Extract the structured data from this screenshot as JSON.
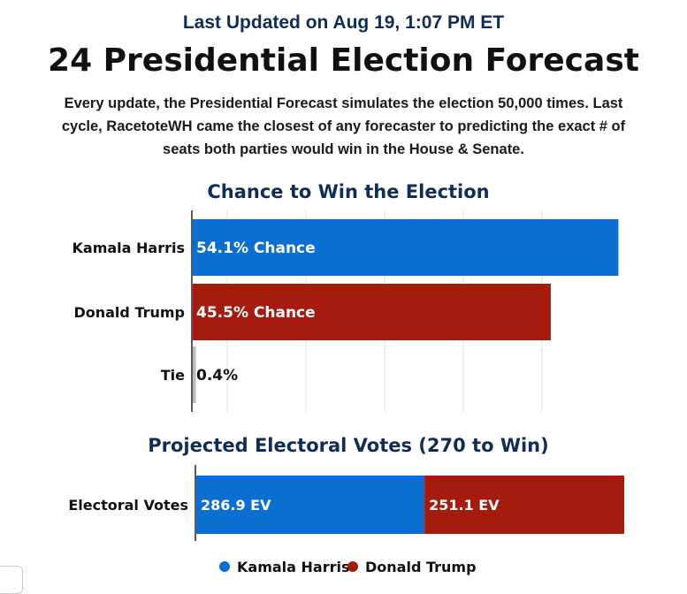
{
  "header": {
    "updated": "Last Updated on Aug 19, 1:07 PM ET",
    "title": "24 Presidential Election Forecast",
    "description": "Every update, the Presidential Forecast simulates the election 50,000 times. Last cycle, RacetoteWH came the closest of any forecaster to predicting the exact # of seats both parties would win in the House & Senate."
  },
  "colors": {
    "harris": "#0b6fd1",
    "trump": "#a51c0e",
    "tie": "#bbbbbb",
    "heading": "#0f2d55"
  },
  "chart_data": [
    {
      "type": "bar",
      "orientation": "horizontal",
      "title": "Chance to Win the Election",
      "categories": [
        "Kamala Harris",
        "Donald Trump",
        "Tie"
      ],
      "values": [
        54.1,
        45.5,
        0.4
      ],
      "labels": [
        "54.1% Chance",
        "45.5% Chance",
        "0.4%"
      ],
      "xlim": [
        0,
        54.5
      ],
      "grid": true
    },
    {
      "type": "bar",
      "orientation": "horizontal",
      "stacked": true,
      "title": "Projected Electoral Votes (270 to Win)",
      "categories": [
        "Electoral Votes"
      ],
      "series": [
        {
          "name": "Kamala Harris",
          "values": [
            286.9
          ],
          "label": "286.9 EV"
        },
        {
          "name": "Donald Trump",
          "values": [
            251.1
          ],
          "label": "251.1 EV"
        }
      ],
      "xlim": [
        0,
        538
      ],
      "legend": "bottom"
    }
  ]
}
